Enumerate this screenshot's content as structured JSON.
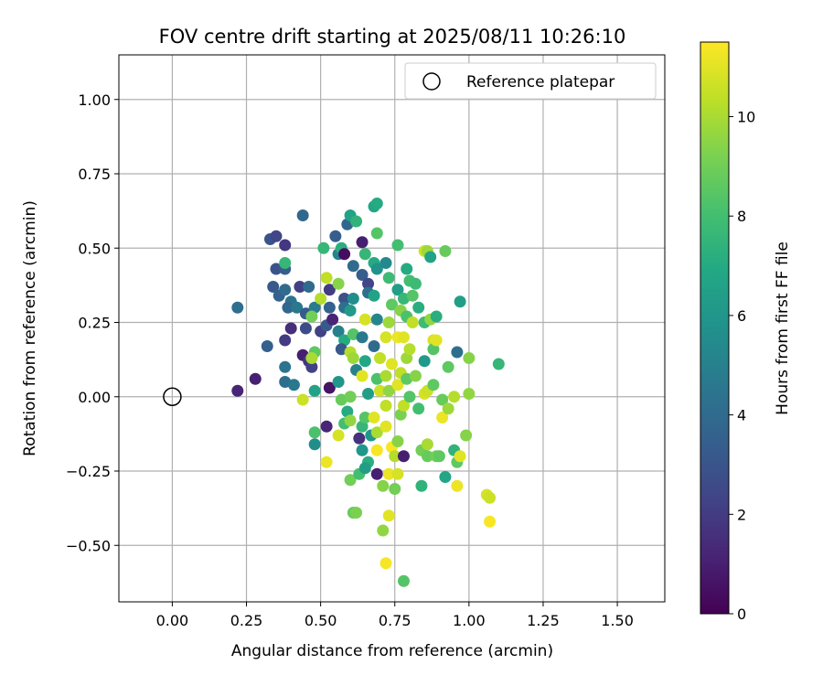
{
  "chart_data": {
    "type": "scatter",
    "title": "FOV centre drift starting at 2025/08/11 10:26:10",
    "xlabel": "Angular distance from reference (arcmin)",
    "ylabel": "Rotation from reference (arcmin)",
    "xlim": [
      -0.18,
      1.66
    ],
    "ylim": [
      -0.69,
      1.15
    ],
    "x_ticks": [
      "0.00",
      "0.25",
      "0.50",
      "0.75",
      "1.00",
      "1.25",
      "1.50"
    ],
    "y_ticks": [
      "−0.50",
      "−0.25",
      "0.00",
      "0.25",
      "0.50",
      "0.75",
      "1.00"
    ],
    "grid": true,
    "legend": {
      "placement": "top-right",
      "entries": [
        "Reference platepar"
      ]
    },
    "reference_point": {
      "x": 0.0,
      "y": 0.0
    },
    "colorbar": {
      "label": "Hours from first FF file",
      "range": [
        0,
        11.5
      ],
      "ticks": [
        "0",
        "2",
        "4",
        "6",
        "8",
        "10"
      ],
      "colormap": "viridis"
    },
    "points": [
      {
        "x": 0.22,
        "y": 0.02,
        "h": 1.2
      },
      {
        "x": 0.28,
        "y": 0.06,
        "h": 1.0
      },
      {
        "x": 0.22,
        "y": 0.3,
        "h": 4.2
      },
      {
        "x": 0.32,
        "y": 0.17,
        "h": 3.5
      },
      {
        "x": 0.33,
        "y": 0.53,
        "h": 3.0
      },
      {
        "x": 0.35,
        "y": 0.54,
        "h": 2.4
      },
      {
        "x": 0.38,
        "y": 0.51,
        "h": 1.8
      },
      {
        "x": 0.35,
        "y": 0.43,
        "h": 3.0
      },
      {
        "x": 0.38,
        "y": 0.43,
        "h": 3.4
      },
      {
        "x": 0.34,
        "y": 0.37,
        "h": 3.2
      },
      {
        "x": 0.36,
        "y": 0.34,
        "h": 3.6
      },
      {
        "x": 0.38,
        "y": 0.36,
        "h": 4.0
      },
      {
        "x": 0.4,
        "y": 0.32,
        "h": 4.4
      },
      {
        "x": 0.38,
        "y": 0.45,
        "h": 7.6
      },
      {
        "x": 0.39,
        "y": 0.3,
        "h": 3.8
      },
      {
        "x": 0.42,
        "y": 0.3,
        "h": 4.6
      },
      {
        "x": 0.4,
        "y": 0.23,
        "h": 1.5
      },
      {
        "x": 0.38,
        "y": 0.19,
        "h": 2.0
      },
      {
        "x": 0.38,
        "y": 0.05,
        "h": 4.2
      },
      {
        "x": 0.41,
        "y": 0.04,
        "h": 4.6
      },
      {
        "x": 0.38,
        "y": 0.1,
        "h": 4.4
      },
      {
        "x": 0.44,
        "y": 0.61,
        "h": 3.8
      },
      {
        "x": 0.43,
        "y": 0.37,
        "h": 2.2
      },
      {
        "x": 0.45,
        "y": 0.28,
        "h": 3.2
      },
      {
        "x": 0.44,
        "y": 0.14,
        "h": 1.0
      },
      {
        "x": 0.45,
        "y": 0.23,
        "h": 2.6
      },
      {
        "x": 0.46,
        "y": 0.12,
        "h": 1.8
      },
      {
        "x": 0.47,
        "y": 0.1,
        "h": 2.2
      },
      {
        "x": 0.46,
        "y": 0.37,
        "h": 4.0
      },
      {
        "x": 0.48,
        "y": 0.3,
        "h": 4.8
      },
      {
        "x": 0.48,
        "y": 0.15,
        "h": 8.6
      },
      {
        "x": 0.47,
        "y": 0.13,
        "h": 10.0
      },
      {
        "x": 0.47,
        "y": 0.27,
        "h": 9.0
      },
      {
        "x": 0.5,
        "y": 0.22,
        "h": 2.2
      },
      {
        "x": 0.5,
        "y": 0.33,
        "h": 10.2
      },
      {
        "x": 0.48,
        "y": 0.02,
        "h": 6.6
      },
      {
        "x": 0.44,
        "y": -0.01,
        "h": 10.6
      },
      {
        "x": 0.48,
        "y": -0.12,
        "h": 8.2
      },
      {
        "x": 0.48,
        "y": -0.16,
        "h": 5.6
      },
      {
        "x": 0.51,
        "y": 0.5,
        "h": 7.6
      },
      {
        "x": 0.52,
        "y": 0.4,
        "h": 10.4
      },
      {
        "x": 0.53,
        "y": 0.36,
        "h": 2.0
      },
      {
        "x": 0.53,
        "y": 0.3,
        "h": 3.6
      },
      {
        "x": 0.52,
        "y": 0.24,
        "h": 3.2
      },
      {
        "x": 0.54,
        "y": 0.26,
        "h": 1.2
      },
      {
        "x": 0.53,
        "y": 0.03,
        "h": 0.6
      },
      {
        "x": 0.52,
        "y": -0.1,
        "h": 1.2
      },
      {
        "x": 0.52,
        "y": -0.22,
        "h": 11.2
      },
      {
        "x": 0.55,
        "y": 0.54,
        "h": 3.4
      },
      {
        "x": 0.56,
        "y": 0.48,
        "h": 5.2
      },
      {
        "x": 0.57,
        "y": 0.5,
        "h": 7.2
      },
      {
        "x": 0.56,
        "y": 0.38,
        "h": 9.4
      },
      {
        "x": 0.58,
        "y": 0.33,
        "h": 2.8
      },
      {
        "x": 0.58,
        "y": 0.3,
        "h": 4.2
      },
      {
        "x": 0.56,
        "y": 0.22,
        "h": 5.0
      },
      {
        "x": 0.58,
        "y": 0.19,
        "h": 7.0
      },
      {
        "x": 0.57,
        "y": 0.16,
        "h": 3.2
      },
      {
        "x": 0.56,
        "y": 0.05,
        "h": 6.0
      },
      {
        "x": 0.57,
        "y": -0.01,
        "h": 8.8
      },
      {
        "x": 0.56,
        "y": -0.13,
        "h": 10.8
      },
      {
        "x": 0.58,
        "y": -0.09,
        "h": 8.0
      },
      {
        "x": 0.59,
        "y": -0.05,
        "h": 7.0
      },
      {
        "x": 0.58,
        "y": 0.48,
        "h": 0.4
      },
      {
        "x": 0.59,
        "y": 0.58,
        "h": 3.8
      },
      {
        "x": 0.6,
        "y": 0.61,
        "h": 6.6
      },
      {
        "x": 0.62,
        "y": 0.59,
        "h": 7.4
      },
      {
        "x": 0.61,
        "y": 0.44,
        "h": 4.0
      },
      {
        "x": 0.61,
        "y": 0.33,
        "h": 5.6
      },
      {
        "x": 0.6,
        "y": 0.29,
        "h": 6.2
      },
      {
        "x": 0.61,
        "y": 0.21,
        "h": 8.4
      },
      {
        "x": 0.6,
        "y": 0.15,
        "h": 10.2
      },
      {
        "x": 0.61,
        "y": 0.13,
        "h": 9.8
      },
      {
        "x": 0.62,
        "y": 0.09,
        "h": 5.0
      },
      {
        "x": 0.6,
        "y": 0.0,
        "h": 9.0
      },
      {
        "x": 0.6,
        "y": -0.08,
        "h": 9.6
      },
      {
        "x": 0.6,
        "y": -0.28,
        "h": 9.0
      },
      {
        "x": 0.61,
        "y": -0.39,
        "h": 8.8
      },
      {
        "x": 0.62,
        "y": -0.39,
        "h": 9.2
      },
      {
        "x": 0.63,
        "y": -0.26,
        "h": 8.0
      },
      {
        "x": 0.64,
        "y": -0.18,
        "h": 6.0
      },
      {
        "x": 0.63,
        "y": -0.14,
        "h": 1.6
      },
      {
        "x": 0.64,
        "y": -0.1,
        "h": 7.6
      },
      {
        "x": 0.64,
        "y": 0.52,
        "h": 1.0
      },
      {
        "x": 0.65,
        "y": 0.48,
        "h": 7.6
      },
      {
        "x": 0.64,
        "y": 0.41,
        "h": 3.4
      },
      {
        "x": 0.66,
        "y": 0.38,
        "h": 2.4
      },
      {
        "x": 0.66,
        "y": 0.35,
        "h": 4.2
      },
      {
        "x": 0.65,
        "y": 0.26,
        "h": 10.8
      },
      {
        "x": 0.64,
        "y": 0.2,
        "h": 4.6
      },
      {
        "x": 0.65,
        "y": 0.12,
        "h": 6.8
      },
      {
        "x": 0.64,
        "y": 0.07,
        "h": 11.0
      },
      {
        "x": 0.66,
        "y": 0.01,
        "h": 6.4
      },
      {
        "x": 0.65,
        "y": -0.07,
        "h": 8.4
      },
      {
        "x": 0.66,
        "y": -0.22,
        "h": 7.2
      },
      {
        "x": 0.65,
        "y": -0.24,
        "h": 6.4
      },
      {
        "x": 0.67,
        "y": -0.13,
        "h": 6.0
      },
      {
        "x": 0.68,
        "y": 0.64,
        "h": 6.8
      },
      {
        "x": 0.69,
        "y": 0.65,
        "h": 7.0
      },
      {
        "x": 0.69,
        "y": 0.55,
        "h": 8.4
      },
      {
        "x": 0.68,
        "y": 0.45,
        "h": 7.0
      },
      {
        "x": 0.69,
        "y": 0.43,
        "h": 5.8
      },
      {
        "x": 0.68,
        "y": 0.34,
        "h": 6.6
      },
      {
        "x": 0.69,
        "y": 0.26,
        "h": 5.2
      },
      {
        "x": 0.68,
        "y": 0.17,
        "h": 4.0
      },
      {
        "x": 0.7,
        "y": 0.13,
        "h": 10.4
      },
      {
        "x": 0.69,
        "y": 0.06,
        "h": 8.2
      },
      {
        "x": 0.7,
        "y": 0.02,
        "h": 10.6
      },
      {
        "x": 0.68,
        "y": -0.07,
        "h": 11.0
      },
      {
        "x": 0.69,
        "y": -0.12,
        "h": 10.0
      },
      {
        "x": 0.69,
        "y": -0.18,
        "h": 11.4
      },
      {
        "x": 0.69,
        "y": -0.26,
        "h": 1.0
      },
      {
        "x": 0.71,
        "y": -0.3,
        "h": 9.4
      },
      {
        "x": 0.71,
        "y": -0.45,
        "h": 9.6
      },
      {
        "x": 0.72,
        "y": -0.56,
        "h": 11.4
      },
      {
        "x": 0.73,
        "y": -0.4,
        "h": 11.0
      },
      {
        "x": 0.73,
        "y": -0.26,
        "h": 11.2
      },
      {
        "x": 0.74,
        "y": -0.17,
        "h": 11.4
      },
      {
        "x": 0.72,
        "y": -0.1,
        "h": 11.0
      },
      {
        "x": 0.72,
        "y": -0.03,
        "h": 10.4
      },
      {
        "x": 0.73,
        "y": 0.02,
        "h": 9.6
      },
      {
        "x": 0.72,
        "y": 0.07,
        "h": 10.0
      },
      {
        "x": 0.74,
        "y": 0.11,
        "h": 11.0
      },
      {
        "x": 0.72,
        "y": 0.2,
        "h": 10.8
      },
      {
        "x": 0.73,
        "y": 0.25,
        "h": 9.8
      },
      {
        "x": 0.74,
        "y": 0.31,
        "h": 8.6
      },
      {
        "x": 0.73,
        "y": 0.4,
        "h": 7.8
      },
      {
        "x": 0.72,
        "y": 0.45,
        "h": 5.4
      },
      {
        "x": 0.75,
        "y": -0.31,
        "h": 9.0
      },
      {
        "x": 0.75,
        "y": -0.2,
        "h": 10.2
      },
      {
        "x": 0.76,
        "y": -0.26,
        "h": 10.8
      },
      {
        "x": 0.76,
        "y": -0.15,
        "h": 9.4
      },
      {
        "x": 0.77,
        "y": -0.06,
        "h": 9.2
      },
      {
        "x": 0.76,
        "y": 0.04,
        "h": 11.0
      },
      {
        "x": 0.77,
        "y": 0.08,
        "h": 10.4
      },
      {
        "x": 0.76,
        "y": 0.2,
        "h": 11.2
      },
      {
        "x": 0.77,
        "y": 0.29,
        "h": 9.4
      },
      {
        "x": 0.76,
        "y": 0.36,
        "h": 6.4
      },
      {
        "x": 0.76,
        "y": 0.51,
        "h": 8.0
      },
      {
        "x": 0.78,
        "y": -0.62,
        "h": 8.4
      },
      {
        "x": 0.78,
        "y": -0.2,
        "h": 1.0
      },
      {
        "x": 0.78,
        "y": -0.03,
        "h": 10.4
      },
      {
        "x": 0.79,
        "y": 0.06,
        "h": 8.6
      },
      {
        "x": 0.79,
        "y": 0.13,
        "h": 9.8
      },
      {
        "x": 0.78,
        "y": 0.2,
        "h": 11.0
      },
      {
        "x": 0.79,
        "y": 0.27,
        "h": 8.2
      },
      {
        "x": 0.78,
        "y": 0.33,
        "h": 7.6
      },
      {
        "x": 0.8,
        "y": 0.39,
        "h": 8.0
      },
      {
        "x": 0.79,
        "y": 0.43,
        "h": 7.0
      },
      {
        "x": 0.8,
        "y": 0.16,
        "h": 10.2
      },
      {
        "x": 0.8,
        "y": 0.0,
        "h": 8.4
      },
      {
        "x": 0.81,
        "y": 0.25,
        "h": 10.4
      },
      {
        "x": 0.81,
        "y": 0.34,
        "h": 8.4
      },
      {
        "x": 0.82,
        "y": 0.38,
        "h": 7.8
      },
      {
        "x": 0.82,
        "y": 0.07,
        "h": 9.4
      },
      {
        "x": 0.83,
        "y": -0.04,
        "h": 8.0
      },
      {
        "x": 0.84,
        "y": -0.18,
        "h": 9.0
      },
      {
        "x": 0.83,
        "y": 0.3,
        "h": 7.2
      },
      {
        "x": 0.85,
        "y": 0.49,
        "h": 10.6
      },
      {
        "x": 0.86,
        "y": 0.49,
        "h": 9.8
      },
      {
        "x": 0.85,
        "y": 0.25,
        "h": 7.8
      },
      {
        "x": 0.85,
        "y": 0.12,
        "h": 6.2
      },
      {
        "x": 0.85,
        "y": 0.01,
        "h": 10.8
      },
      {
        "x": 0.84,
        "y": -0.3,
        "h": 7.4
      },
      {
        "x": 0.86,
        "y": -0.16,
        "h": 10.0
      },
      {
        "x": 0.86,
        "y": -0.2,
        "h": 8.8
      },
      {
        "x": 0.86,
        "y": 0.02,
        "h": 10.6
      },
      {
        "x": 0.87,
        "y": 0.47,
        "h": 6.6
      },
      {
        "x": 0.87,
        "y": 0.26,
        "h": 9.6
      },
      {
        "x": 0.88,
        "y": 0.19,
        "h": 10.8
      },
      {
        "x": 0.88,
        "y": 0.16,
        "h": 8.4
      },
      {
        "x": 0.89,
        "y": 0.19,
        "h": 11.0
      },
      {
        "x": 0.89,
        "y": 0.27,
        "h": 7.2
      },
      {
        "x": 0.88,
        "y": 0.04,
        "h": 8.6
      },
      {
        "x": 0.89,
        "y": -0.2,
        "h": 9.0
      },
      {
        "x": 0.9,
        "y": -0.2,
        "h": 8.6
      },
      {
        "x": 0.91,
        "y": -0.07,
        "h": 11.2
      },
      {
        "x": 0.91,
        "y": -0.01,
        "h": 8.8
      },
      {
        "x": 0.92,
        "y": 0.49,
        "h": 8.8
      },
      {
        "x": 0.93,
        "y": 0.1,
        "h": 8.6
      },
      {
        "x": 0.92,
        "y": -0.27,
        "h": 6.8
      },
      {
        "x": 0.93,
        "y": -0.04,
        "h": 9.8
      },
      {
        "x": 0.95,
        "y": 0.0,
        "h": 10.2
      },
      {
        "x": 0.95,
        "y": -0.18,
        "h": 7.4
      },
      {
        "x": 0.96,
        "y": -0.22,
        "h": 8.6
      },
      {
        "x": 0.96,
        "y": -0.3,
        "h": 11.2
      },
      {
        "x": 0.97,
        "y": -0.2,
        "h": 11.0
      },
      {
        "x": 0.96,
        "y": 0.15,
        "h": 4.2
      },
      {
        "x": 0.97,
        "y": 0.32,
        "h": 6.4
      },
      {
        "x": 0.99,
        "y": -0.13,
        "h": 9.4
      },
      {
        "x": 1.0,
        "y": 0.01,
        "h": 9.6
      },
      {
        "x": 1.0,
        "y": 0.13,
        "h": 9.4
      },
      {
        "x": 1.06,
        "y": -0.33,
        "h": 10.8
      },
      {
        "x": 1.07,
        "y": -0.34,
        "h": 10.6
      },
      {
        "x": 1.07,
        "y": -0.42,
        "h": 11.4
      },
      {
        "x": 1.1,
        "y": 0.11,
        "h": 7.6
      }
    ]
  }
}
